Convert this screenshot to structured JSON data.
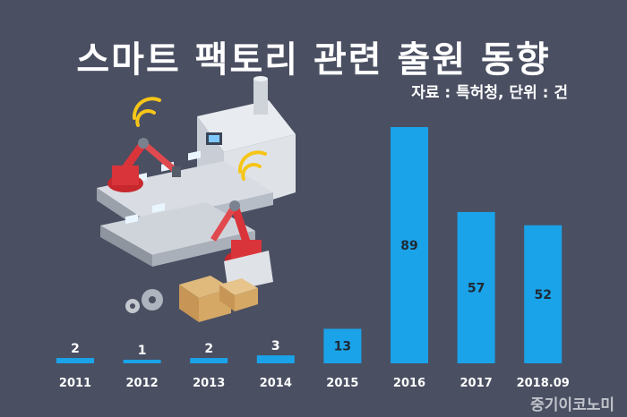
{
  "header": {
    "title": "스마트 팩토리 관련 출원 동향",
    "source": "자료 : 특허청, 단위 : 건"
  },
  "watermark": "중기이코노미",
  "colors": {
    "background": "#4a4f62",
    "bar": "#1aa3e8",
    "label_dark": "#1f2a36",
    "label_light": "#ffffff"
  },
  "chart_data": {
    "type": "bar",
    "title": "스마트 팩토리 관련 출원 동향",
    "categories": [
      "2011",
      "2012",
      "2013",
      "2014",
      "2015",
      "2016",
      "2017",
      "2018.09"
    ],
    "values": [
      2,
      1,
      2,
      3,
      13,
      89,
      57,
      52
    ],
    "data_labels": [
      "2",
      "1",
      "2",
      "3",
      "13",
      "89",
      "57",
      "52"
    ],
    "ylim": [
      0,
      89
    ],
    "grid": false,
    "legend": "none"
  },
  "illustration": {
    "icon": "smart-factory-robot-arms-illustration"
  }
}
